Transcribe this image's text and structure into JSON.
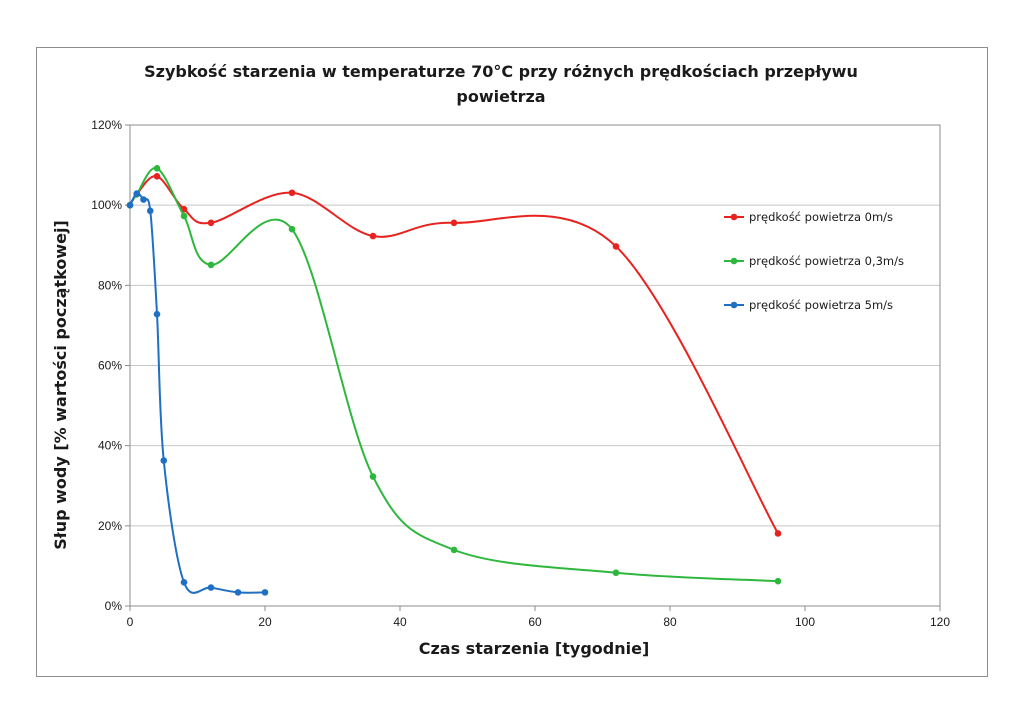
{
  "chart_data": {
    "type": "line",
    "title_lines": [
      "Szybkość starzenia w temperaturze 70°C przy różnych prędkościach przepływu",
      "powietrza"
    ],
    "xlabel": "Czas starzenia [tygodnie]",
    "ylabel": "Słup wody [% wartości początkowej]",
    "xlim": [
      0,
      120
    ],
    "ylim": [
      0,
      120
    ],
    "x_ticks": [
      0,
      20,
      40,
      60,
      80,
      100,
      120
    ],
    "y_ticks": [
      0,
      20,
      40,
      60,
      80,
      100,
      120
    ],
    "x_tick_labels": [
      "0",
      "20",
      "40",
      "60",
      "80",
      "100",
      "120"
    ],
    "y_tick_labels": [
      "0%",
      "20%",
      "40%",
      "60%",
      "80%",
      "100%",
      "120%"
    ],
    "grid": "horizontal",
    "smooth": true,
    "legend_position": "right",
    "series": [
      {
        "name": "prędkość powietrza  0m/s",
        "color": "#e8231f",
        "points": [
          [
            0,
            100
          ],
          [
            1,
            102.7
          ],
          [
            4,
            107.2
          ],
          [
            8,
            99
          ],
          [
            12,
            95.6
          ],
          [
            24,
            103.1
          ],
          [
            36,
            92.3
          ],
          [
            48,
            95.6
          ],
          [
            72,
            89.7
          ],
          [
            96,
            18.1
          ]
        ]
      },
      {
        "name": "prędkość powietrza  0,3m/s",
        "color": "#2db83d",
        "points": [
          [
            0,
            100
          ],
          [
            1,
            102.7
          ],
          [
            4,
            109.2
          ],
          [
            8,
            97.3
          ],
          [
            12,
            85.1
          ],
          [
            24,
            94
          ],
          [
            36,
            32.3
          ],
          [
            48,
            14
          ],
          [
            72,
            8.3
          ],
          [
            96,
            6.2
          ]
        ]
      },
      {
        "name": "prędkość powietrza  5m/s",
        "color": "#1f6fc5",
        "points": [
          [
            0,
            100
          ],
          [
            1,
            102.9
          ],
          [
            2,
            101.4
          ],
          [
            3,
            98.6
          ],
          [
            4,
            72.8
          ],
          [
            5,
            36.3
          ],
          [
            8,
            5.9
          ],
          [
            12,
            4.6
          ],
          [
            16,
            3.4
          ],
          [
            20,
            3.4
          ]
        ]
      }
    ]
  }
}
